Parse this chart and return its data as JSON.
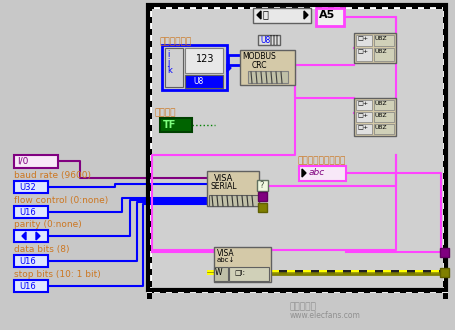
{
  "bg_color": "#c8c8c8",
  "labels": {
    "baud_rate": "baud rate (9600)",
    "flow_control": "flow control (0:none)",
    "parity": "parity (0:none)",
    "data_bits": "data bits (8)",
    "stop_bits": "stop bits (10: 1 bit)",
    "fasong_zhiling": "发送指令",
    "fasong_xinxi": "发送指令信息",
    "fasong_xianshi": "发送指令字符串显示"
  },
  "colors": {
    "blue": "#0000ff",
    "magenta": "#ff00ff",
    "olive": "#808000",
    "purple": "#800080",
    "orange": "#cc7722",
    "tan": "#d4c9a8",
    "pink_magenta": "#ff44ff"
  },
  "watermark_line1": "电子发烧友",
  "watermark_line2": "www.elecfans.com"
}
